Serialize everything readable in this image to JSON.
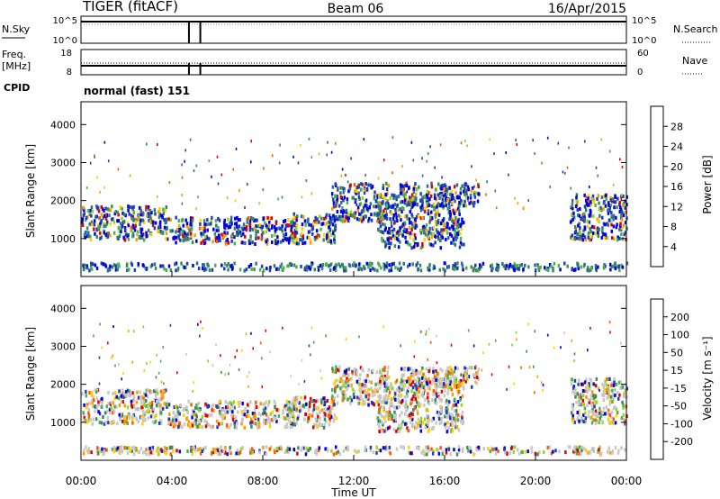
{
  "header": {
    "station": "TIGER (fitACF)",
    "beam": "Beam 06",
    "date": "16/Apr/2015"
  },
  "status_panels": {
    "nsky": {
      "label": "N.Sky",
      "ticks": [
        "10^5",
        "10^0"
      ],
      "right_label": "N.Search",
      "right_ticks": [
        "10^5",
        "10^0"
      ],
      "events_x": [
        4.75,
        5.25
      ]
    },
    "freq": {
      "label_line1": "Freq.",
      "label_line2": "[MHz]",
      "ticks": [
        "18",
        "8"
      ],
      "right_label": "Nave",
      "right_ticks": [
        "60",
        "0"
      ]
    },
    "cpid": {
      "label": "CPID",
      "text": "normal (fast) 151"
    }
  },
  "chart_data": [
    {
      "type": "heatmap",
      "name": "power",
      "ylabel": "Slant Range [km]",
      "ylim": [
        0,
        4600
      ],
      "yticks": [
        1000,
        2000,
        3000,
        4000
      ],
      "xlim": [
        0,
        24
      ],
      "colorbar": {
        "label": "Power [dB]",
        "colors": [
          "#0000e0",
          "#2040b0",
          "#2e6e8e",
          "#3b8b5a",
          "#4caf50",
          "#a0d020",
          "#ffd000",
          "#ff9a00",
          "#ff5a00",
          "#e00000"
        ],
        "ticks": [
          "4",
          "8",
          "12",
          "16",
          "20",
          "24",
          "28"
        ]
      },
      "clusters": [
        {
          "x0": 0.0,
          "x1": 3.8,
          "y0": 1000,
          "y1": 1900
        },
        {
          "x0": 3.8,
          "x1": 9.5,
          "y0": 900,
          "y1": 1600
        },
        {
          "x0": 9.2,
          "x1": 11.2,
          "y0": 900,
          "y1": 1700
        },
        {
          "x0": 11.0,
          "x1": 13.5,
          "y0": 1500,
          "y1": 2500
        },
        {
          "x0": 13.0,
          "x1": 16.8,
          "y0": 800,
          "y1": 2200
        },
        {
          "x0": 14.0,
          "x1": 17.5,
          "y0": 1900,
          "y1": 2500
        },
        {
          "x0": 21.5,
          "x1": 24.0,
          "y0": 1000,
          "y1": 2200
        },
        {
          "x0": 0.0,
          "x1": 24.0,
          "y0": 200,
          "y1": 400
        }
      ]
    },
    {
      "type": "heatmap",
      "name": "velocity",
      "ylabel": "Slant Range [km]",
      "ylim": [
        0,
        4600
      ],
      "yticks": [
        1000,
        2000,
        3000,
        4000
      ],
      "xlim": [
        0,
        24
      ],
      "xlabel": "Time UT",
      "xticks": [
        "00:00",
        "04:00",
        "08:00",
        "12:00",
        "16:00",
        "20:00",
        "00:00"
      ],
      "colorbar": {
        "label": "Velocity [m s⁻¹]",
        "colors": [
          "#e00000",
          "#ff5a00",
          "#ff9a00",
          "#ffd000",
          "#c8c8c8",
          "#a0d020",
          "#4caf50",
          "#3b8b5a",
          "#2040b0",
          "#0000e0"
        ],
        "ticks": [
          "-200",
          "-100",
          "-50",
          "-15",
          "15",
          "50",
          "100",
          "200"
        ]
      },
      "clusters": [
        {
          "x0": 0.0,
          "x1": 3.8,
          "y0": 1000,
          "y1": 1900
        },
        {
          "x0": 3.8,
          "x1": 9.5,
          "y0": 900,
          "y1": 1600
        },
        {
          "x0": 9.2,
          "x1": 11.2,
          "y0": 900,
          "y1": 1700
        },
        {
          "x0": 11.0,
          "x1": 13.5,
          "y0": 1500,
          "y1": 2500
        },
        {
          "x0": 13.0,
          "x1": 16.8,
          "y0": 800,
          "y1": 2200
        },
        {
          "x0": 14.0,
          "x1": 17.5,
          "y0": 1900,
          "y1": 2500
        },
        {
          "x0": 21.5,
          "x1": 24.0,
          "y0": 1000,
          "y1": 2200
        },
        {
          "x0": 0.0,
          "x1": 24.0,
          "y0": 200,
          "y1": 400
        }
      ]
    }
  ]
}
